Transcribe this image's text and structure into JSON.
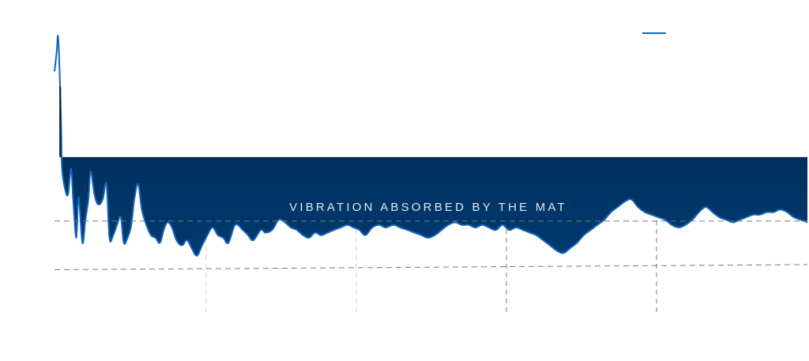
{
  "chart_data": {
    "type": "area",
    "title": "",
    "xlabel": "",
    "ylabel": "",
    "grid": true,
    "legend": "top-right",
    "annotation": "VIBRATION ABSORBED BY THE MAT",
    "colors": {
      "band_dark": "#00254a",
      "band_mid": "#003a70",
      "line": "#1565b8",
      "grid_light": "#d0d0d0",
      "grid_dark": "#777777",
      "legend_line": "#1565b8"
    },
    "xlim": [
      0,
      100
    ],
    "ylim": [
      0,
      100
    ],
    "band_level": 52.5,
    "reference_lines": [
      {
        "name": "upper-reference-line",
        "y": [
          27.5,
          27.5
        ]
      },
      {
        "name": "lower-reference-line",
        "y": [
          8.5,
          10.5
        ]
      }
    ],
    "series": [
      {
        "points": [
          [
            0,
            86
          ],
          [
            0.3,
            94
          ],
          [
            0.45,
            100
          ],
          [
            0.6,
            93
          ],
          [
            0.75,
            80
          ],
          [
            0.9,
            62
          ],
          [
            1.0,
            48
          ],
          [
            1.4,
            40
          ],
          [
            1.8,
            38
          ],
          [
            2.2,
            48
          ],
          [
            2.5,
            35
          ],
          [
            2.9,
            21
          ],
          [
            3.2,
            37
          ],
          [
            3.7,
            19
          ],
          [
            4.1,
            28
          ],
          [
            4.5,
            36
          ],
          [
            4.8,
            47
          ],
          [
            5.3,
            38
          ],
          [
            5.8,
            34
          ],
          [
            6.4,
            36
          ],
          [
            6.9,
            42
          ],
          [
            7.3,
            21
          ],
          [
            7.8,
            22
          ],
          [
            8.3,
            26
          ],
          [
            8.8,
            29
          ],
          [
            9.2,
            19
          ],
          [
            9.7,
            21
          ],
          [
            10.2,
            26
          ],
          [
            10.6,
            36
          ],
          [
            11.1,
            42
          ],
          [
            11.6,
            32
          ],
          [
            12.2,
            26
          ],
          [
            12.8,
            22
          ],
          [
            13.4,
            21
          ],
          [
            14.0,
            19
          ],
          [
            14.5,
            24
          ],
          [
            15.0,
            27
          ],
          [
            15.6,
            25
          ],
          [
            16.2,
            20
          ],
          [
            16.9,
            18
          ],
          [
            17.6,
            20
          ],
          [
            18.2,
            17
          ],
          [
            18.9,
            14
          ],
          [
            19.6,
            18
          ],
          [
            20.3,
            22
          ],
          [
            21.0,
            25
          ],
          [
            21.7,
            22
          ],
          [
            22.4,
            21
          ],
          [
            23.1,
            19
          ],
          [
            24.0,
            26
          ],
          [
            25.0,
            24
          ],
          [
            25.7,
            22
          ],
          [
            26.4,
            20
          ],
          [
            27.4,
            24
          ],
          [
            28.0,
            23
          ],
          [
            28.9,
            24
          ],
          [
            29.8,
            28
          ],
          [
            30.6,
            27
          ],
          [
            31.4,
            25
          ],
          [
            32.2,
            24
          ],
          [
            33.0,
            22
          ],
          [
            33.8,
            21
          ],
          [
            34.6,
            23
          ],
          [
            35.4,
            22
          ],
          [
            36.3,
            23
          ],
          [
            37.1,
            24
          ],
          [
            38.0,
            25
          ],
          [
            38.9,
            26
          ],
          [
            39.7,
            25
          ],
          [
            40.5,
            24
          ],
          [
            41.3,
            22
          ],
          [
            42.2,
            25
          ],
          [
            43.1,
            26
          ],
          [
            44.0,
            25
          ],
          [
            45.0,
            26
          ],
          [
            45.9,
            25
          ],
          [
            46.9,
            24
          ],
          [
            47.8,
            23
          ],
          [
            48.7,
            22
          ],
          [
            49.6,
            21
          ],
          [
            50.5,
            22
          ],
          [
            51.4,
            24
          ],
          [
            52.3,
            26
          ],
          [
            53.2,
            27
          ],
          [
            54.1,
            26
          ],
          [
            55.0,
            26
          ],
          [
            55.9,
            25
          ],
          [
            56.8,
            26
          ],
          [
            57.7,
            25
          ],
          [
            58.6,
            24
          ],
          [
            59.5,
            26
          ],
          [
            60.4,
            24
          ],
          [
            61.3,
            25
          ],
          [
            62.2,
            24
          ],
          [
            63.1,
            23
          ],
          [
            64.0,
            22
          ],
          [
            64.9,
            20
          ],
          [
            65.8,
            18
          ],
          [
            66.7,
            16
          ],
          [
            67.6,
            15
          ],
          [
            68.5,
            17
          ],
          [
            69.4,
            19
          ],
          [
            70.3,
            22
          ],
          [
            71.2,
            24
          ],
          [
            72.1,
            26
          ],
          [
            73.0,
            28
          ],
          [
            73.9,
            31
          ],
          [
            74.8,
            33
          ],
          [
            75.7,
            35
          ],
          [
            76.6,
            36
          ],
          [
            77.5,
            33
          ],
          [
            78.4,
            31
          ],
          [
            79.3,
            30
          ],
          [
            80.2,
            29
          ],
          [
            81.1,
            28
          ],
          [
            82.0,
            26
          ],
          [
            82.9,
            25
          ],
          [
            83.8,
            26
          ],
          [
            84.7,
            28
          ],
          [
            85.6,
            31
          ],
          [
            86.5,
            33
          ],
          [
            87.4,
            31
          ],
          [
            88.3,
            29
          ],
          [
            89.2,
            28
          ],
          [
            90.1,
            27
          ],
          [
            91.0,
            28
          ],
          [
            91.9,
            29
          ],
          [
            92.8,
            30
          ],
          [
            93.7,
            30
          ],
          [
            94.6,
            31
          ],
          [
            95.5,
            31
          ],
          [
            96.4,
            32
          ],
          [
            97.3,
            31
          ],
          [
            98.2,
            29
          ],
          [
            99.1,
            28
          ],
          [
            100,
            27
          ]
        ]
      }
    ]
  }
}
